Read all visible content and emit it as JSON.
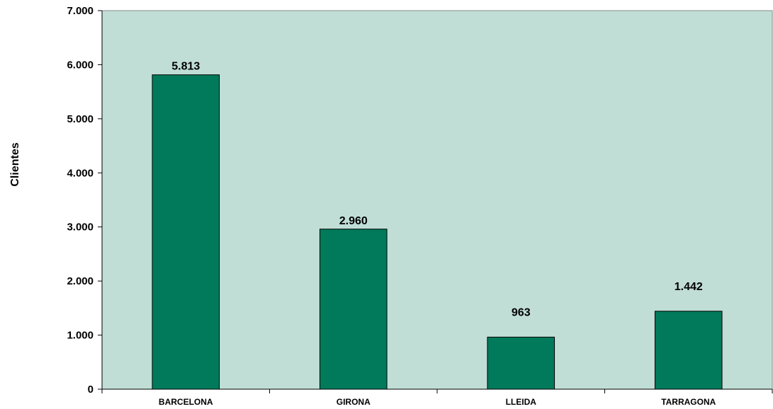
{
  "chart_data": {
    "type": "bar",
    "categories": [
      "BARCELONA",
      "GIRONA",
      "LLEIDA",
      "TARRAGONA"
    ],
    "values": [
      5813,
      2960,
      963,
      1442
    ],
    "value_labels": [
      "5.813",
      "2.960",
      "963",
      "1.442"
    ],
    "ylabel": "Clientes",
    "xlabel": "",
    "title": "",
    "ylim": [
      0,
      7000
    ],
    "y_ticks": [
      0,
      1000,
      2000,
      3000,
      4000,
      5000,
      6000,
      7000
    ],
    "y_tick_labels": [
      "0",
      "1.000",
      "2.000",
      "3.000",
      "4.000",
      "5.000",
      "6.000",
      "7.000"
    ],
    "grid": false,
    "legend": "none",
    "colors": {
      "plot_background": "#c0ded6",
      "bar_fill": "#007a5a",
      "bar_stroke": "#000000",
      "axis": "#000000"
    }
  }
}
